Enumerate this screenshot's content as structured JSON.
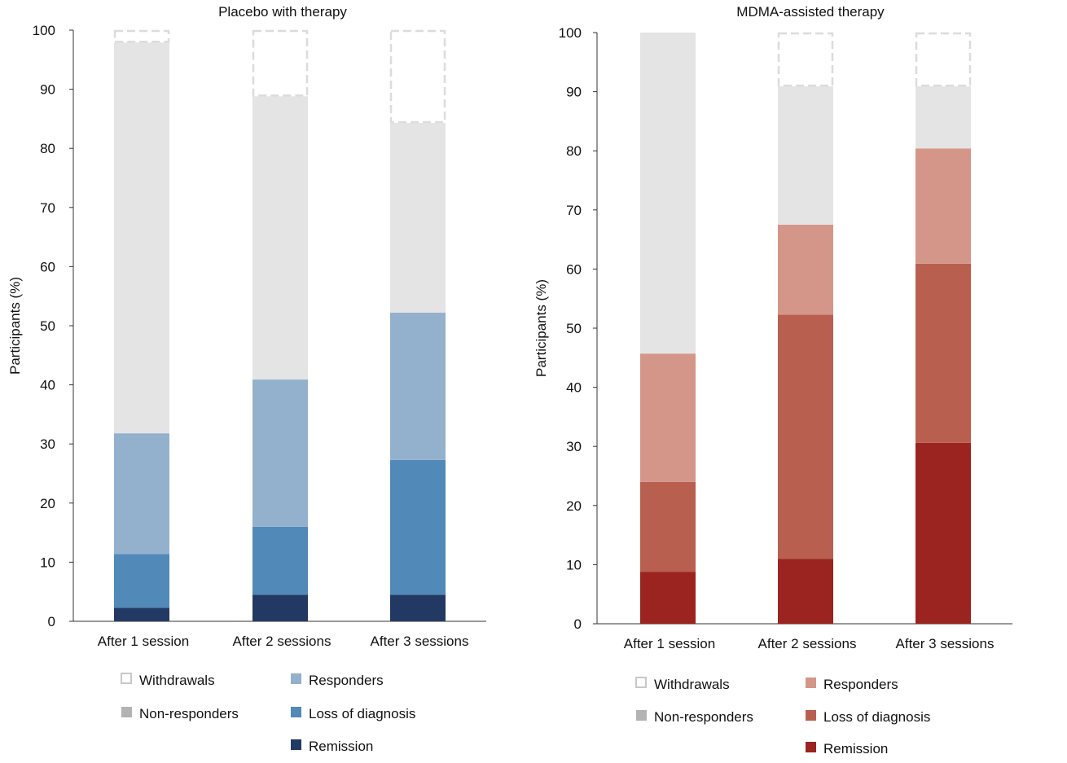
{
  "chart_data": [
    {
      "type": "bar",
      "stacked": true,
      "title": "Placebo with therapy",
      "ylabel": "Participants (%)",
      "xlabel": "",
      "ylim": [
        0,
        100
      ],
      "yticks": [
        0,
        10,
        20,
        30,
        40,
        50,
        60,
        70,
        80,
        90,
        100
      ],
      "categories": [
        "After 1 session",
        "After 2 sessions",
        "After 3 sessions"
      ],
      "series": [
        {
          "name": "Remission",
          "color": "#223a63",
          "values": [
            2.3,
            4.5,
            4.5
          ]
        },
        {
          "name": "Loss of diagnosis",
          "color": "#5189b8",
          "values": [
            9.1,
            11.5,
            22.8
          ]
        },
        {
          "name": "Responders",
          "color": "#93b1cd",
          "values": [
            20.4,
            24.9,
            24.9
          ]
        },
        {
          "name": "Non-responders",
          "color": "#e4e4e4",
          "legend_color": "#b3b3b3",
          "values": [
            66.1,
            47.9,
            32.1
          ]
        },
        {
          "name": "Withdrawals",
          "color": "none",
          "values": [
            2.1,
            11.2,
            15.7
          ]
        }
      ],
      "legend": "bottom"
    },
    {
      "type": "bar",
      "stacked": true,
      "title": "MDMA-assisted therapy",
      "ylabel": "Participants (%)",
      "xlabel": "",
      "ylim": [
        0,
        100
      ],
      "yticks": [
        0,
        10,
        20,
        30,
        40,
        50,
        60,
        70,
        80,
        90,
        100
      ],
      "categories": [
        "After 1 session",
        "After 2 sessions",
        "After 3 sessions"
      ],
      "series": [
        {
          "name": "Remission",
          "color": "#9b2320",
          "values": [
            8.8,
            11.0,
            30.6
          ]
        },
        {
          "name": "Loss of diagnosis",
          "color": "#b95f50",
          "values": [
            15.2,
            41.3,
            30.3
          ]
        },
        {
          "name": "Responders",
          "color": "#d49689",
          "values": [
            21.7,
            15.2,
            19.5
          ]
        },
        {
          "name": "Non-responders",
          "color": "#e4e4e4",
          "legend_color": "#b3b3b3",
          "values": [
            54.3,
            23.4,
            10.5
          ]
        },
        {
          "name": "Withdrawals",
          "color": "none",
          "values": [
            0,
            9.1,
            9.1
          ]
        }
      ],
      "legend": "bottom"
    }
  ]
}
